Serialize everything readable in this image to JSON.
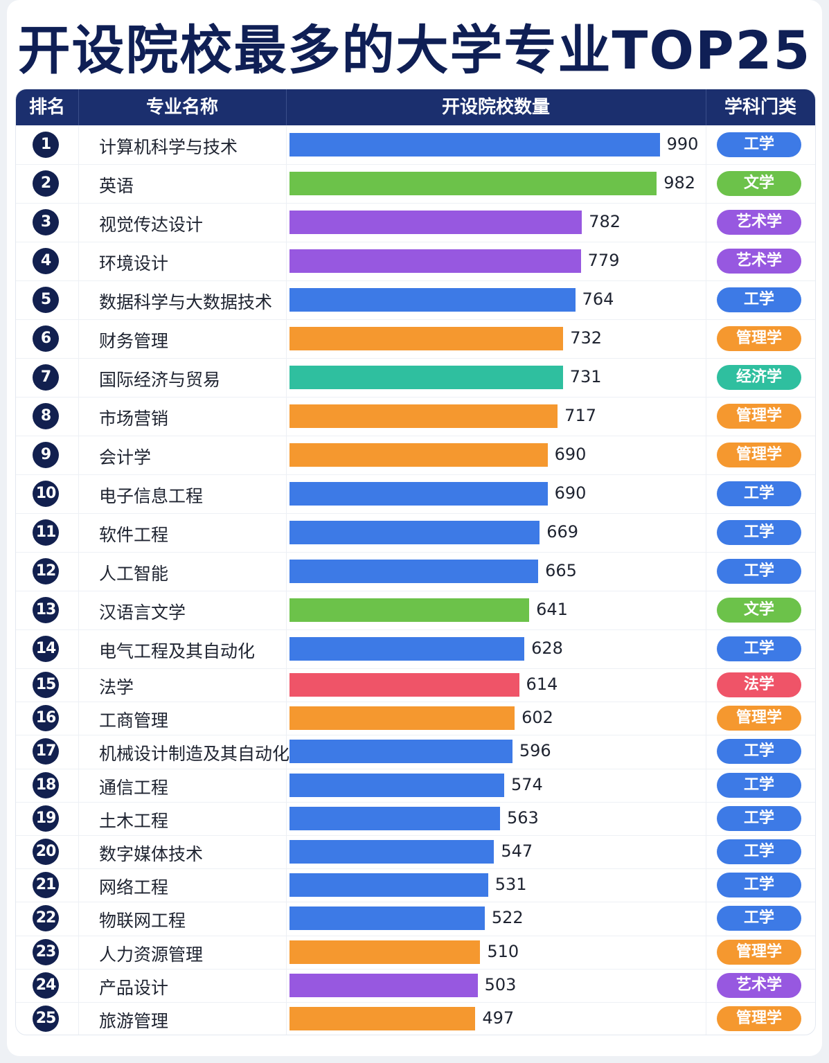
{
  "title": "开设院校最多的大学专业TOP25",
  "headers": [
    "排名",
    "专业名称",
    "开设院校数量",
    "学科门类"
  ],
  "colors": {
    "工学": "#3d7ae6",
    "文学": "#6cc24a",
    "艺术学": "#9758e0",
    "管理学": "#f5982f",
    "经济学": "#2fbf9f",
    "法学": "#ef5468"
  },
  "chart_data": {
    "type": "bar",
    "title": "开设院校最多的大学专业TOP25",
    "xlabel": "",
    "ylabel": "开设院校数量",
    "xlim": [
      0,
      1000
    ],
    "categories": [
      "计算机科学与技术",
      "英语",
      "视觉传达设计",
      "环境设计",
      "数据科学与大数据技术",
      "财务管理",
      "国际经济与贸易",
      "市场营销",
      "会计学",
      "电子信息工程",
      "软件工程",
      "人工智能",
      "汉语言文学",
      "电气工程及其自动化",
      "法学",
      "工商管理",
      "机械设计制造及其自动化",
      "通信工程",
      "土木工程",
      "数字媒体技术",
      "网络工程",
      "物联网工程",
      "人力资源管理",
      "产品设计",
      "旅游管理"
    ],
    "values": [
      990,
      982,
      782,
      779,
      764,
      732,
      731,
      717,
      690,
      690,
      669,
      665,
      641,
      628,
      614,
      602,
      596,
      574,
      563,
      547,
      531,
      522,
      510,
      503,
      497
    ],
    "ranks": [
      "1",
      "2",
      "3",
      "4",
      "5",
      "6",
      "7",
      "8",
      "9",
      "10",
      "11",
      "12",
      "13",
      "14",
      "15",
      "16",
      "17",
      "18",
      "19",
      "20",
      "21",
      "22",
      "23",
      "24",
      "25"
    ],
    "disciplines": [
      "工学",
      "文学",
      "艺术学",
      "艺术学",
      "工学",
      "管理学",
      "经济学",
      "管理学",
      "管理学",
      "工学",
      "工学",
      "工学",
      "文学",
      "工学",
      "法学",
      "管理学",
      "工学",
      "工学",
      "工学",
      "工学",
      "工学",
      "工学",
      "管理学",
      "艺术学",
      "管理学"
    ]
  }
}
